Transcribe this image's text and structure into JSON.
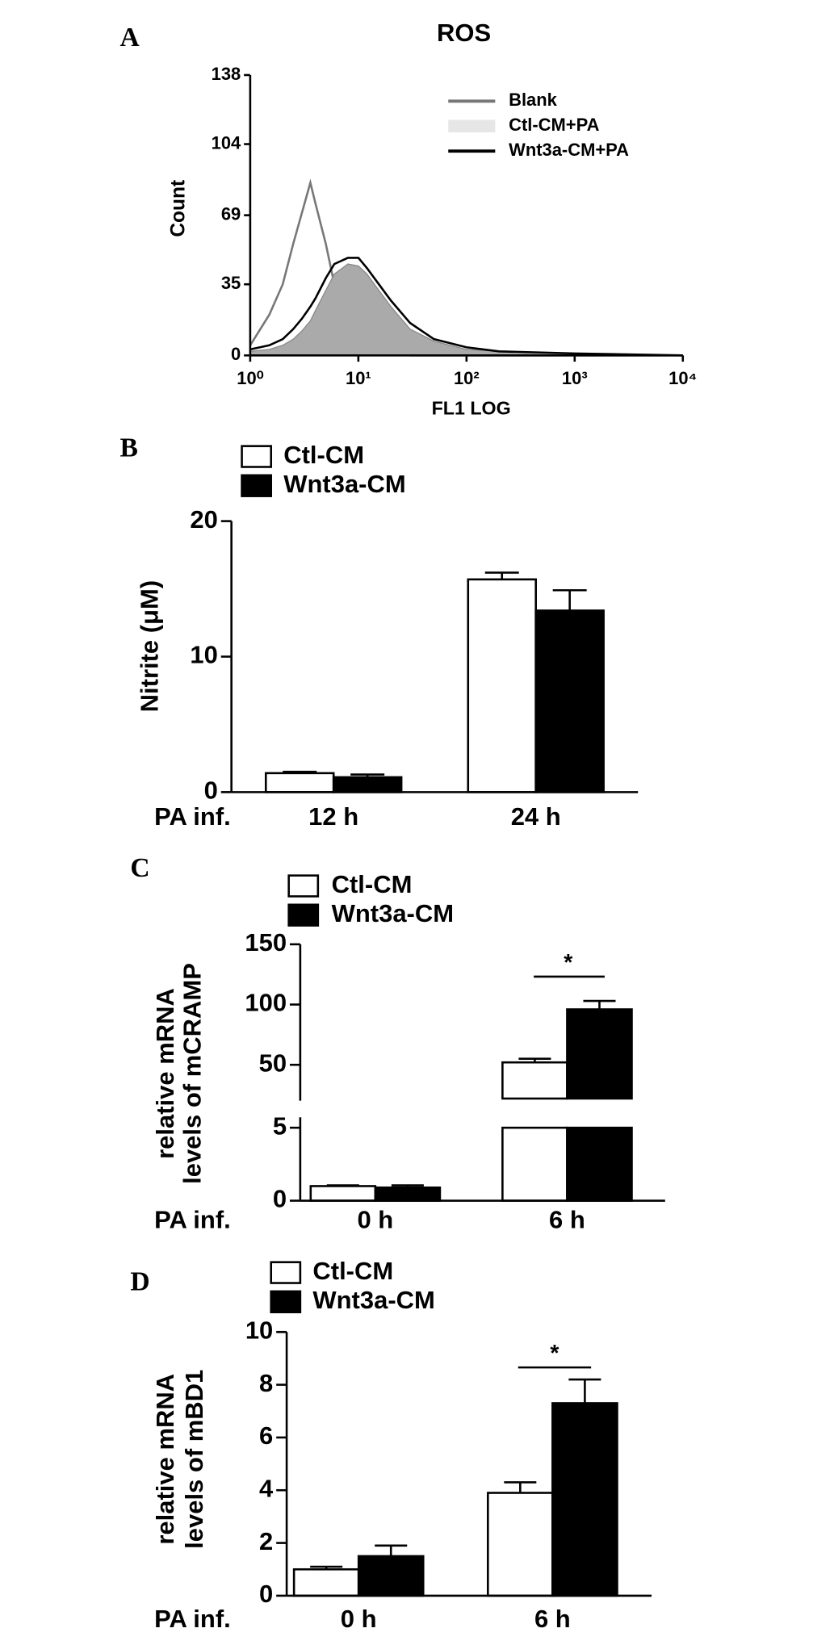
{
  "chart_data": [
    {
      "type": "histogram-overlay",
      "panel": "A",
      "title": "ROS",
      "xlabel": "FL1 LOG",
      "ylabel": "Count",
      "log_x": true,
      "xlim": [
        1,
        10000
      ],
      "xticks": [
        {
          "value": 1,
          "label": "10⁰"
        },
        {
          "value": 10,
          "label": "10¹"
        },
        {
          "value": 100,
          "label": "10²"
        },
        {
          "value": 1000,
          "label": "10³"
        },
        {
          "value": 10000,
          "label": "10⁴"
        }
      ],
      "ylim": [
        0,
        138
      ],
      "yticks": [
        0,
        35,
        69,
        104,
        138
      ],
      "x": [
        1,
        1.5,
        2,
        2.5,
        3,
        3.6,
        4,
        5,
        6,
        8,
        10,
        12,
        15,
        20,
        30,
        50,
        100,
        200,
        1000,
        10000
      ],
      "series": [
        {
          "name": "Blank",
          "color": "#777777",
          "style": "line",
          "values": [
            5,
            20,
            35,
            55,
            70,
            85,
            75,
            55,
            35,
            15,
            6,
            4,
            2,
            1,
            0,
            0,
            0,
            0,
            0,
            0
          ]
        },
        {
          "name": "Ctl-CM+PA",
          "color": "#aaaaaa",
          "style": "area",
          "values": [
            2,
            3,
            5,
            8,
            12,
            17,
            22,
            32,
            40,
            45,
            44,
            40,
            33,
            24,
            13,
            7,
            3,
            2,
            1,
            0
          ]
        },
        {
          "name": "Wnt3a-CM+PA",
          "color": "#000000",
          "style": "line",
          "values": [
            3,
            5,
            8,
            13,
            18,
            24,
            28,
            38,
            45,
            48,
            48,
            43,
            36,
            27,
            16,
            8,
            4,
            2,
            1,
            0
          ]
        }
      ]
    },
    {
      "type": "bar",
      "panel": "B",
      "ylabel": [
        "Nitrite (μM)"
      ],
      "xlabel": "PA inf.",
      "categories": [
        "12 h",
        "24 h"
      ],
      "ylim": [
        0,
        20
      ],
      "yticks": [
        0,
        10,
        20
      ],
      "series": [
        {
          "name": "Ctl-CM",
          "color": "#ffffff",
          "values": [
            1.4,
            15.7
          ],
          "errors": [
            0.1,
            0.5
          ]
        },
        {
          "name": "Wnt3a-CM",
          "color": "#000000",
          "values": [
            1.1,
            13.4
          ],
          "errors": [
            0.2,
            1.5
          ]
        }
      ]
    },
    {
      "type": "bar",
      "panel": "C",
      "ylabel": [
        "relative mRNA",
        "levels of mCRAMP"
      ],
      "xlabel": "PA inf.",
      "categories": [
        "0 h",
        "6 h"
      ],
      "ylim": [
        0,
        150
      ],
      "axis_break": [
        5,
        22
      ],
      "yticks": [
        0,
        5,
        50,
        100,
        150
      ],
      "annotation": "*",
      "series": [
        {
          "name": "Ctl-CM",
          "color": "#ffffff",
          "values": [
            1.0,
            52
          ],
          "errors": [
            0.05,
            3
          ]
        },
        {
          "name": "Wnt3a-CM",
          "color": "#000000",
          "values": [
            0.9,
            96
          ],
          "errors": [
            0.15,
            7
          ]
        }
      ]
    },
    {
      "type": "bar",
      "panel": "D",
      "ylabel": [
        "relative mRNA",
        "levels of mBD1"
      ],
      "xlabel": "PA inf.",
      "categories": [
        "0 h",
        "6 h"
      ],
      "ylim": [
        0,
        10
      ],
      "yticks": [
        0,
        2,
        4,
        6,
        8,
        10
      ],
      "annotation": "*",
      "series": [
        {
          "name": "Ctl-CM",
          "color": "#ffffff",
          "values": [
            1.0,
            3.9
          ],
          "errors": [
            0.1,
            0.4
          ]
        },
        {
          "name": "Wnt3a-CM",
          "color": "#000000",
          "values": [
            1.5,
            7.3
          ],
          "errors": [
            0.4,
            0.9
          ]
        }
      ]
    }
  ]
}
